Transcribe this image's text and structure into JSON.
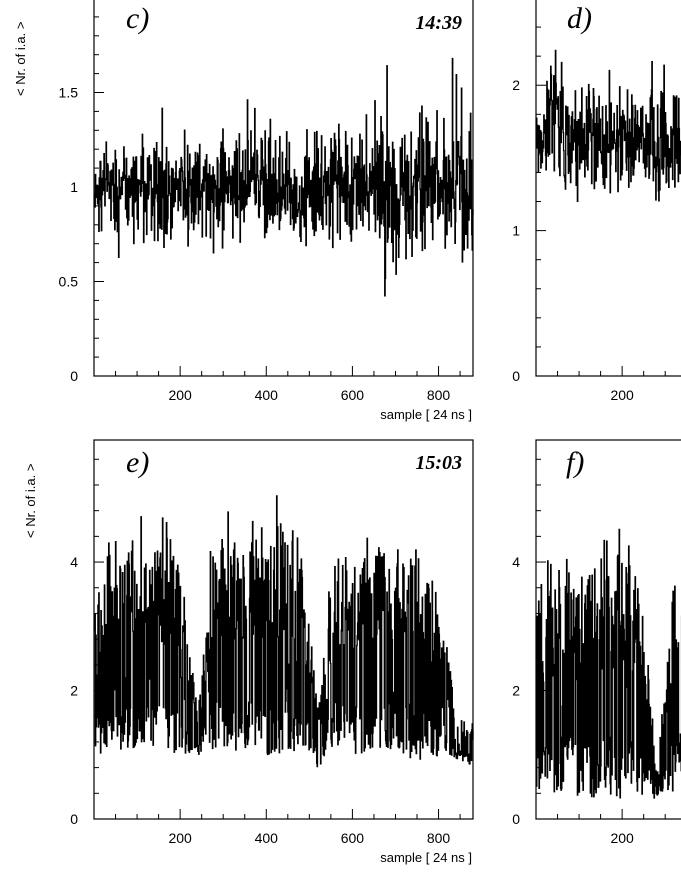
{
  "chart_data": [
    {
      "type": "line",
      "panel_label": "c)",
      "time_label": "14:39",
      "ylabel": "< Nr. of i.a. >",
      "xlabel": "sample [ 24 ns ]",
      "xlim": [
        0,
        880
      ],
      "ylim": [
        0,
        2.0
      ],
      "x_ticks": [
        200,
        400,
        600,
        800
      ],
      "y_ticks": [
        0,
        0.5,
        1,
        1.5
      ],
      "x_tick_labels": [
        "200",
        "400",
        "600",
        "800"
      ],
      "y_tick_labels": [
        "0",
        "0.5",
        "1",
        "1.5"
      ],
      "series": [
        {
          "x": [
            0,
            40,
            80,
            120,
            160,
            200,
            240,
            280,
            320,
            360,
            400,
            440,
            480,
            520,
            560,
            600,
            640,
            680,
            720,
            760,
            800,
            840,
            880
          ],
          "values": [
            1.0,
            1.0,
            0.98,
            1.02,
            1.0,
            1.0,
            1.01,
            0.99,
            1.0,
            1.03,
            1.0,
            1.0,
            0.98,
            1.0,
            1.01,
            1.0,
            1.02,
            1.0,
            0.97,
            1.0,
            1.0,
            0.99,
            1.0
          ],
          "band_min": [
            0.72,
            0.6,
            0.65,
            0.7,
            0.6,
            0.7,
            0.72,
            0.65,
            0.7,
            0.62,
            0.7,
            0.7,
            0.68,
            0.65,
            0.7,
            0.68,
            0.72,
            0.62,
            0.55,
            0.6,
            0.65,
            0.68,
            0.65
          ],
          "band_max": [
            1.2,
            1.22,
            1.25,
            1.3,
            1.45,
            1.3,
            1.5,
            1.4,
            1.35,
            1.5,
            1.35,
            1.4,
            1.35,
            1.45,
            1.4,
            1.45,
            1.5,
            1.78,
            1.5,
            1.45,
            1.42,
            1.75,
            1.35
          ]
        }
      ]
    },
    {
      "type": "line",
      "panel_label": "d)",
      "time_label": "",
      "ylabel": "",
      "xlabel": "",
      "xlim": [
        0,
        880
      ],
      "ylim": [
        0,
        2.6
      ],
      "x_ticks": [
        200
      ],
      "y_ticks": [
        0,
        1,
        2
      ],
      "x_tick_labels": [
        "200"
      ],
      "y_tick_labels": [
        "0",
        "1",
        "2"
      ],
      "series": [
        {
          "x": [
            0,
            40,
            80,
            120,
            160,
            200,
            240,
            280,
            320,
            360
          ],
          "values": [
            1.65,
            1.7,
            1.6,
            1.65,
            1.6,
            1.65,
            1.6,
            1.62,
            1.6,
            1.62
          ],
          "band_min": [
            1.35,
            1.25,
            1.1,
            1.2,
            1.15,
            1.25,
            1.2,
            1.15,
            1.25,
            1.3
          ],
          "band_max": [
            1.95,
            2.3,
            2.15,
            2.2,
            2.1,
            2.15,
            2.1,
            2.2,
            2.1,
            2.15
          ]
        }
      ]
    },
    {
      "type": "line",
      "panel_label": "e)",
      "time_label": "15:03",
      "ylabel": "< Nr. of i.a. >",
      "xlabel": "sample [ 24 ns ]",
      "xlim": [
        0,
        880
      ],
      "ylim": [
        0,
        5.9
      ],
      "x_ticks": [
        200,
        400,
        600,
        800
      ],
      "y_ticks": [
        0,
        2,
        4
      ],
      "x_tick_labels": [
        "200",
        "400",
        "600",
        "800"
      ],
      "y_tick_labels": [
        "0",
        "2",
        "4"
      ],
      "series": [
        {
          "x": [
            0,
            40,
            80,
            120,
            160,
            200,
            240,
            280,
            320,
            360,
            400,
            440,
            480,
            520,
            560,
            600,
            640,
            680,
            720,
            760,
            800,
            840,
            880
          ],
          "values": [
            2.5,
            2.6,
            2.8,
            2.7,
            2.7,
            2.6,
            1.4,
            2.8,
            2.7,
            2.8,
            2.7,
            2.9,
            2.7,
            1.4,
            2.7,
            2.6,
            2.7,
            2.7,
            2.6,
            2.7,
            2.5,
            1.3,
            1.2
          ],
          "band_min": [
            0.9,
            1.0,
            1.1,
            1.0,
            1.1,
            1.0,
            1.0,
            1.1,
            1.0,
            1.1,
            1.0,
            1.0,
            1.1,
            0.8,
            1.1,
            1.0,
            1.0,
            1.1,
            1.0,
            0.8,
            1.0,
            0.95,
            0.8
          ],
          "band_max": [
            3.8,
            4.9,
            5.0,
            4.7,
            4.7,
            4.5,
            1.8,
            5.0,
            4.8,
            5.0,
            4.8,
            5.3,
            5.0,
            1.8,
            4.9,
            4.6,
            4.7,
            4.9,
            4.7,
            4.9,
            4.2,
            1.7,
            1.5
          ]
        }
      ]
    },
    {
      "type": "line",
      "panel_label": "f)",
      "time_label": "",
      "ylabel": "",
      "xlabel": "",
      "xlim": [
        0,
        880
      ],
      "ylim": [
        0,
        5.9
      ],
      "x_ticks": [
        200
      ],
      "y_ticks": [
        0,
        2,
        4
      ],
      "x_tick_labels": [
        "200"
      ],
      "y_tick_labels": [
        "0",
        "2",
        "4"
      ],
      "series": [
        {
          "x": [
            0,
            40,
            80,
            120,
            160,
            200,
            240,
            280,
            320,
            360
          ],
          "values": [
            2.0,
            2.3,
            2.4,
            2.3,
            2.4,
            2.3,
            2.4,
            0.6,
            2.3,
            2.4
          ],
          "band_min": [
            0.3,
            0.4,
            0.4,
            0.3,
            0.4,
            0.3,
            0.4,
            0.3,
            0.4,
            0.3
          ],
          "band_max": [
            3.8,
            4.3,
            4.6,
            4.5,
            4.9,
            4.6,
            4.6,
            0.8,
            4.5,
            4.6
          ]
        }
      ]
    }
  ]
}
